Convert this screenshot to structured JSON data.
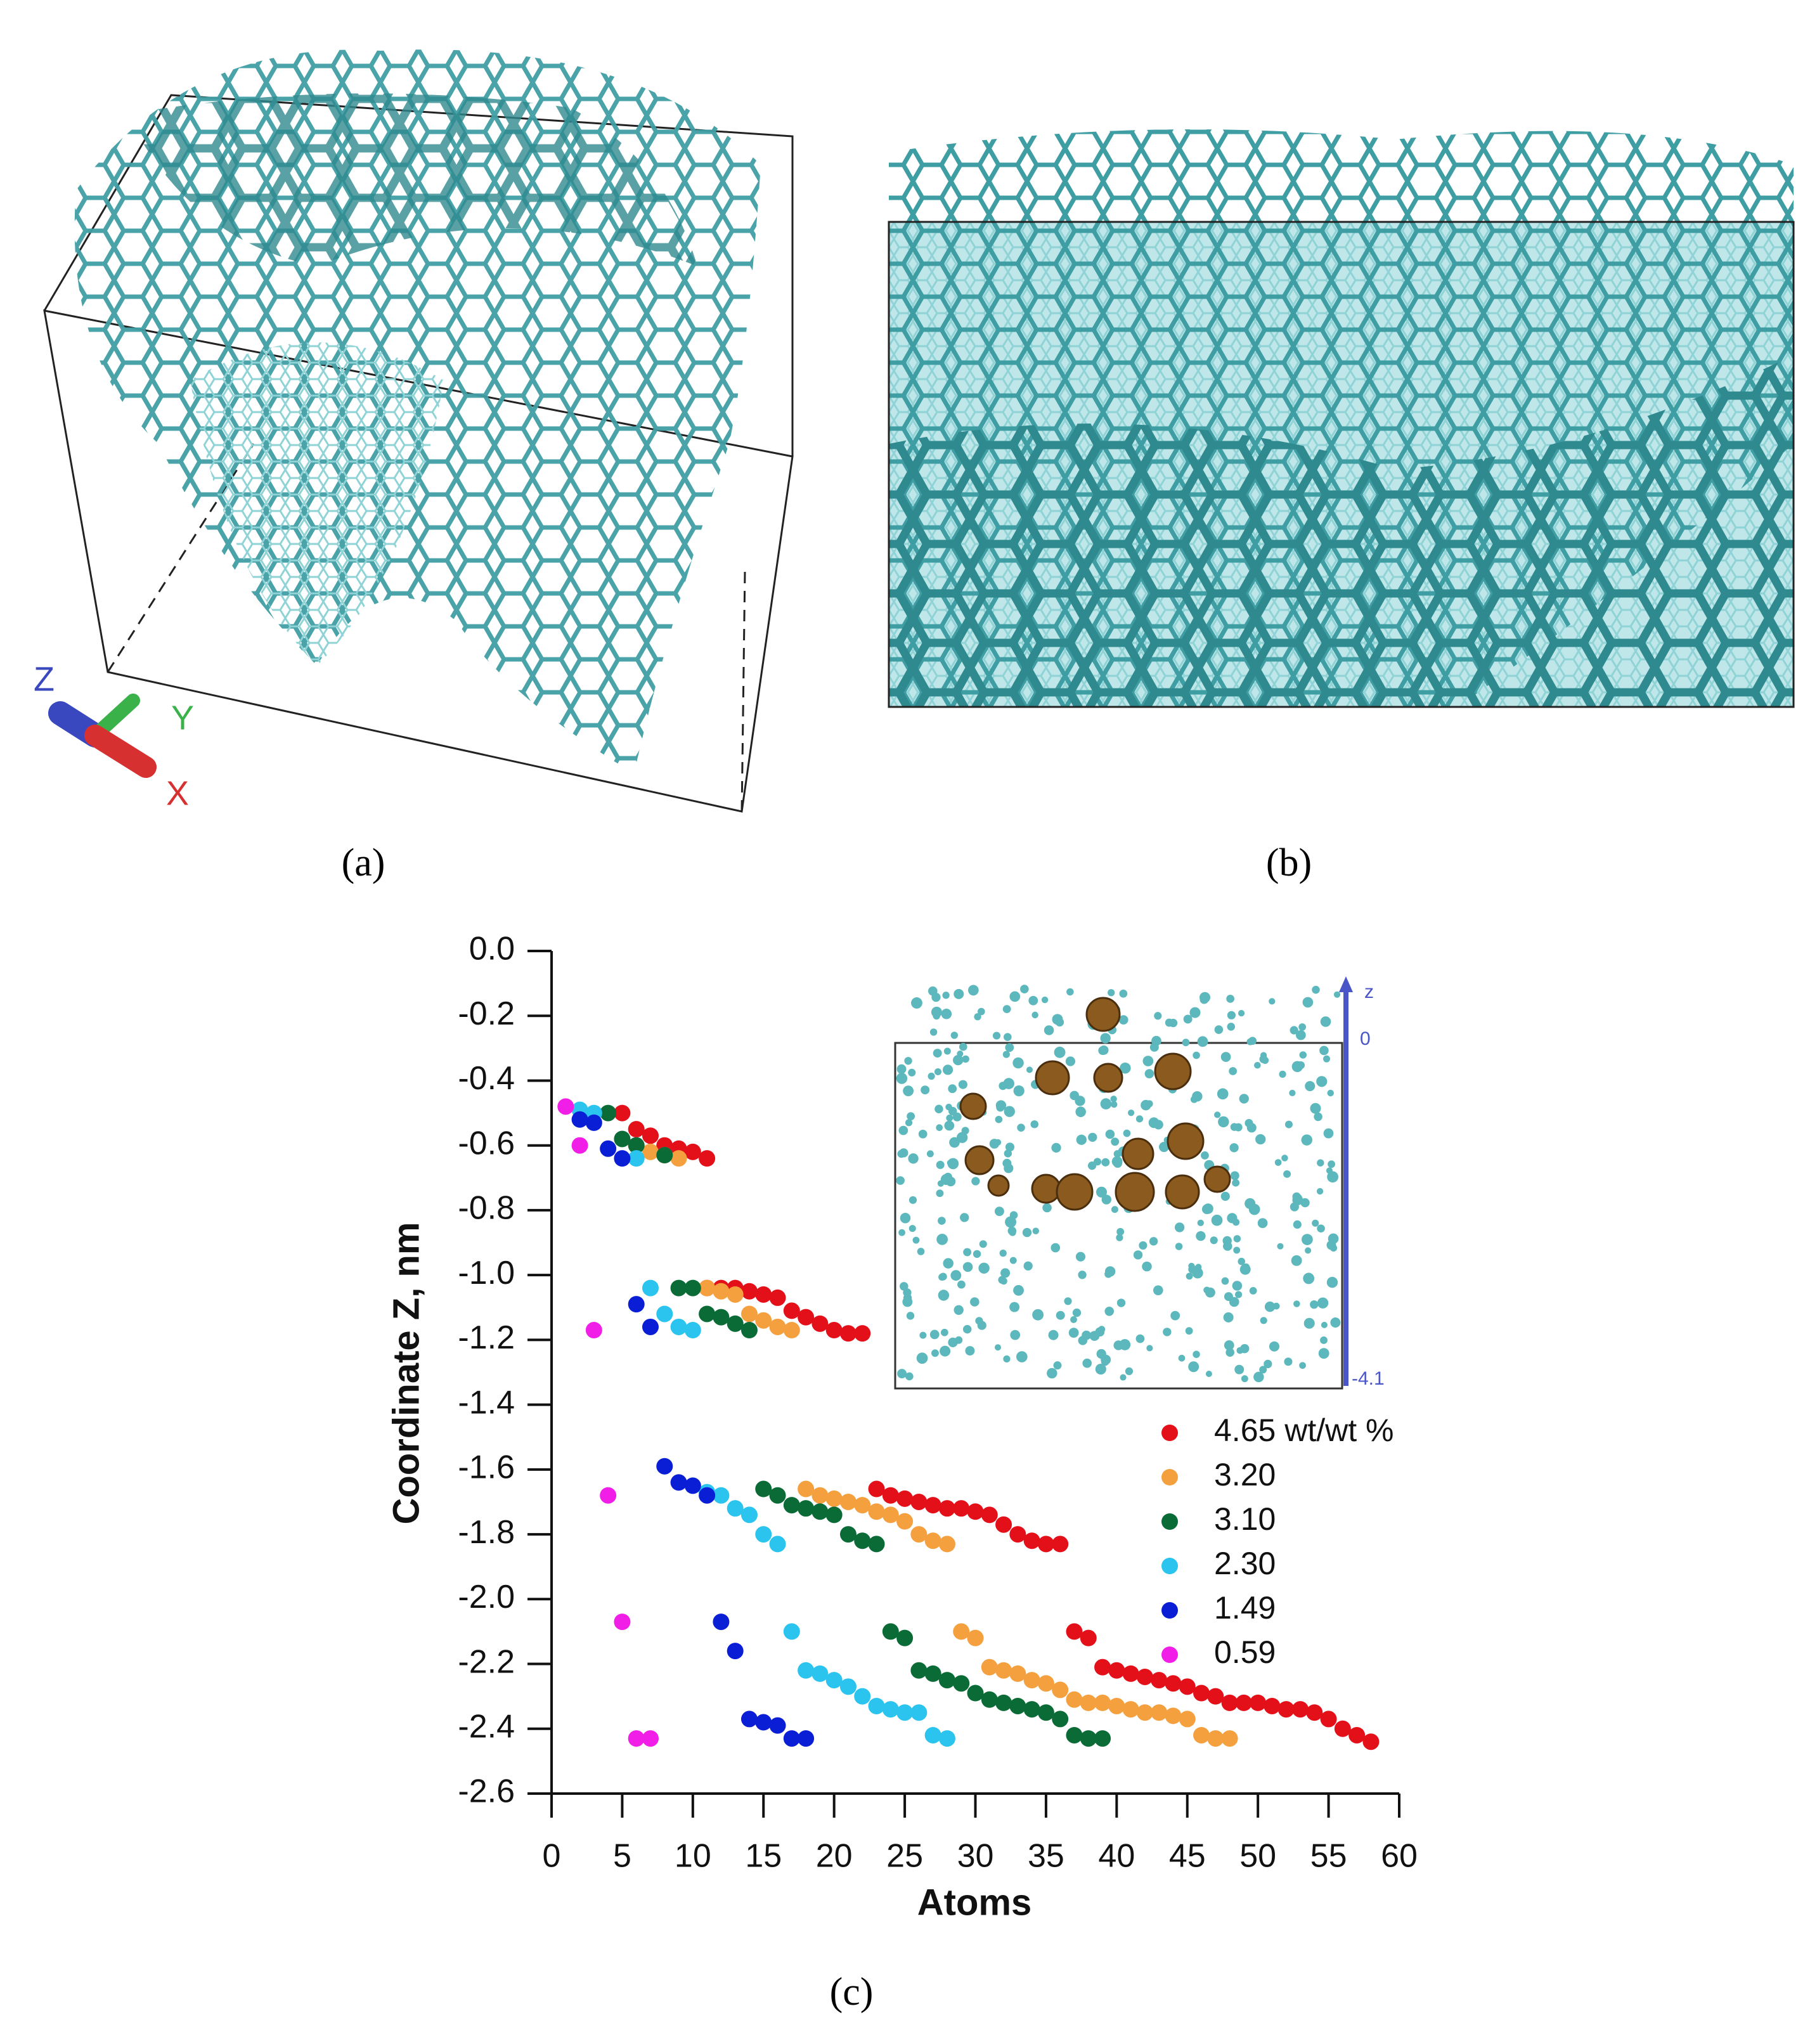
{
  "panels": {
    "a": {
      "label": "(a)",
      "axes": {
        "z": "Z",
        "y": "Y",
        "x": "X"
      }
    },
    "b": {
      "label": "(b)"
    },
    "c": {
      "label": "(c)"
    }
  },
  "inset": {
    "axis_label": "z",
    "top": "0",
    "bottom": "-4.1"
  },
  "chart_data": {
    "type": "scatter",
    "x_label": "Atoms",
    "y_label": "Coordinate Z, nm",
    "xlim": [
      0,
      60
    ],
    "ylim": [
      -2.6,
      0
    ],
    "xticks": [
      0,
      5,
      10,
      15,
      20,
      25,
      30,
      35,
      40,
      45,
      50,
      55,
      60
    ],
    "yticks": [
      {
        "value": 0,
        "label": "0.0"
      },
      -0.2,
      -0.4,
      -0.6,
      -0.8,
      {
        "value": -1,
        "label": "-1.0"
      },
      -1.2,
      -1.4,
      -1.6,
      -1.8,
      {
        "value": -2,
        "label": "-2.0"
      },
      -2.2,
      -2.4,
      -2.6
    ],
    "series": [
      {
        "name": "4.65 wt/wt %",
        "color": "#e3101a",
        "x": [
          5,
          6,
          7,
          8,
          9,
          10,
          11,
          11,
          12,
          13,
          14,
          15,
          16,
          17,
          18,
          19,
          20,
          21,
          22,
          23,
          24,
          25,
          26,
          27,
          28,
          29,
          30,
          31,
          32,
          33,
          34,
          35,
          36,
          37,
          38,
          39,
          40,
          41,
          42,
          43,
          44,
          45,
          46,
          47,
          48,
          49,
          50,
          51,
          52,
          53,
          54,
          55,
          56,
          57,
          58
        ],
        "y": [
          -0.5,
          -0.55,
          -0.57,
          -0.6,
          -0.61,
          -0.62,
          -0.64,
          -1.04,
          -1.04,
          -1.04,
          -1.05,
          -1.06,
          -1.07,
          -1.11,
          -1.13,
          -1.15,
          -1.17,
          -1.18,
          -1.18,
          -1.66,
          -1.68,
          -1.69,
          -1.7,
          -1.71,
          -1.72,
          -1.72,
          -1.73,
          -1.74,
          -1.77,
          -1.8,
          -1.82,
          -1.83,
          -1.83,
          -2.1,
          -2.12,
          -2.21,
          -2.22,
          -2.23,
          -2.24,
          -2.25,
          -2.26,
          -2.27,
          -2.29,
          -2.3,
          -2.32,
          -2.32,
          -2.32,
          -2.33,
          -2.34,
          -2.34,
          -2.35,
          -2.37,
          -2.4,
          -2.42,
          -2.44
        ]
      },
      {
        "name": "3.20",
        "color": "#f5a03f",
        "x": [
          6,
          7,
          8,
          9,
          11,
          12,
          13,
          14,
          15,
          16,
          17,
          18,
          19,
          20,
          21,
          22,
          23,
          24,
          25,
          26,
          27,
          28,
          29,
          30,
          31,
          32,
          33,
          34,
          35,
          36,
          37,
          38,
          39,
          40,
          41,
          42,
          43,
          44,
          45,
          46,
          47,
          48
        ],
        "y": [
          -0.6,
          -0.62,
          -0.63,
          -0.64,
          -1.04,
          -1.05,
          -1.06,
          -1.12,
          -1.14,
          -1.16,
          -1.17,
          -1.66,
          -1.68,
          -1.69,
          -1.7,
          -1.71,
          -1.73,
          -1.74,
          -1.76,
          -1.8,
          -1.82,
          -1.83,
          -2.1,
          -2.12,
          -2.21,
          -2.22,
          -2.23,
          -2.25,
          -2.26,
          -2.28,
          -2.31,
          -2.32,
          -2.32,
          -2.33,
          -2.34,
          -2.35,
          -2.35,
          -2.36,
          -2.37,
          -2.42,
          -2.43,
          -2.43
        ]
      },
      {
        "name": "3.10",
        "color": "#0b6b37",
        "x": [
          4,
          5,
          6,
          8,
          9,
          10,
          11,
          12,
          13,
          14,
          15,
          16,
          17,
          18,
          19,
          20,
          21,
          22,
          23,
          24,
          25,
          26,
          27,
          28,
          29,
          30,
          31,
          32,
          33,
          34,
          35,
          36,
          37,
          38,
          39
        ],
        "y": [
          -0.5,
          -0.58,
          -0.6,
          -0.63,
          -1.04,
          -1.04,
          -1.12,
          -1.13,
          -1.15,
          -1.17,
          -1.66,
          -1.68,
          -1.71,
          -1.72,
          -1.73,
          -1.74,
          -1.8,
          -1.82,
          -1.83,
          -2.1,
          -2.12,
          -2.22,
          -2.23,
          -2.25,
          -2.26,
          -2.29,
          -2.31,
          -2.32,
          -2.33,
          -2.34,
          -2.35,
          -2.37,
          -2.42,
          -2.43,
          -2.43
        ]
      },
      {
        "name": "2.30",
        "color": "#2ac4ef",
        "x": [
          2,
          3,
          6,
          7,
          8,
          9,
          10,
          11,
          12,
          13,
          14,
          15,
          16,
          17,
          18,
          19,
          20,
          21,
          22,
          23,
          24,
          25,
          26,
          27,
          28
        ],
        "y": [
          -0.49,
          -0.5,
          -0.64,
          -1.04,
          -1.12,
          -1.16,
          -1.17,
          -1.67,
          -1.68,
          -1.72,
          -1.74,
          -1.8,
          -1.83,
          -2.1,
          -2.22,
          -2.23,
          -2.25,
          -2.27,
          -2.3,
          -2.33,
          -2.34,
          -2.35,
          -2.35,
          -2.42,
          -2.43
        ]
      },
      {
        "name": "1.49",
        "color": "#0a1ed6",
        "x": [
          2,
          3,
          4,
          5,
          6,
          7,
          8,
          9,
          10,
          11,
          12,
          13,
          14,
          15,
          16,
          17,
          18
        ],
        "y": [
          -0.52,
          -0.53,
          -0.61,
          -0.64,
          -1.09,
          -1.16,
          -1.59,
          -1.64,
          -1.65,
          -1.68,
          -2.07,
          -2.16,
          -2.37,
          -2.38,
          -2.39,
          -2.43,
          -2.43
        ]
      },
      {
        "name": "0.59",
        "color": "#f01ee6",
        "x": [
          1,
          2,
          3,
          4,
          5,
          6,
          7
        ],
        "y": [
          -0.48,
          -0.6,
          -1.17,
          -1.68,
          -2.07,
          -2.43,
          -2.43
        ]
      }
    ]
  }
}
